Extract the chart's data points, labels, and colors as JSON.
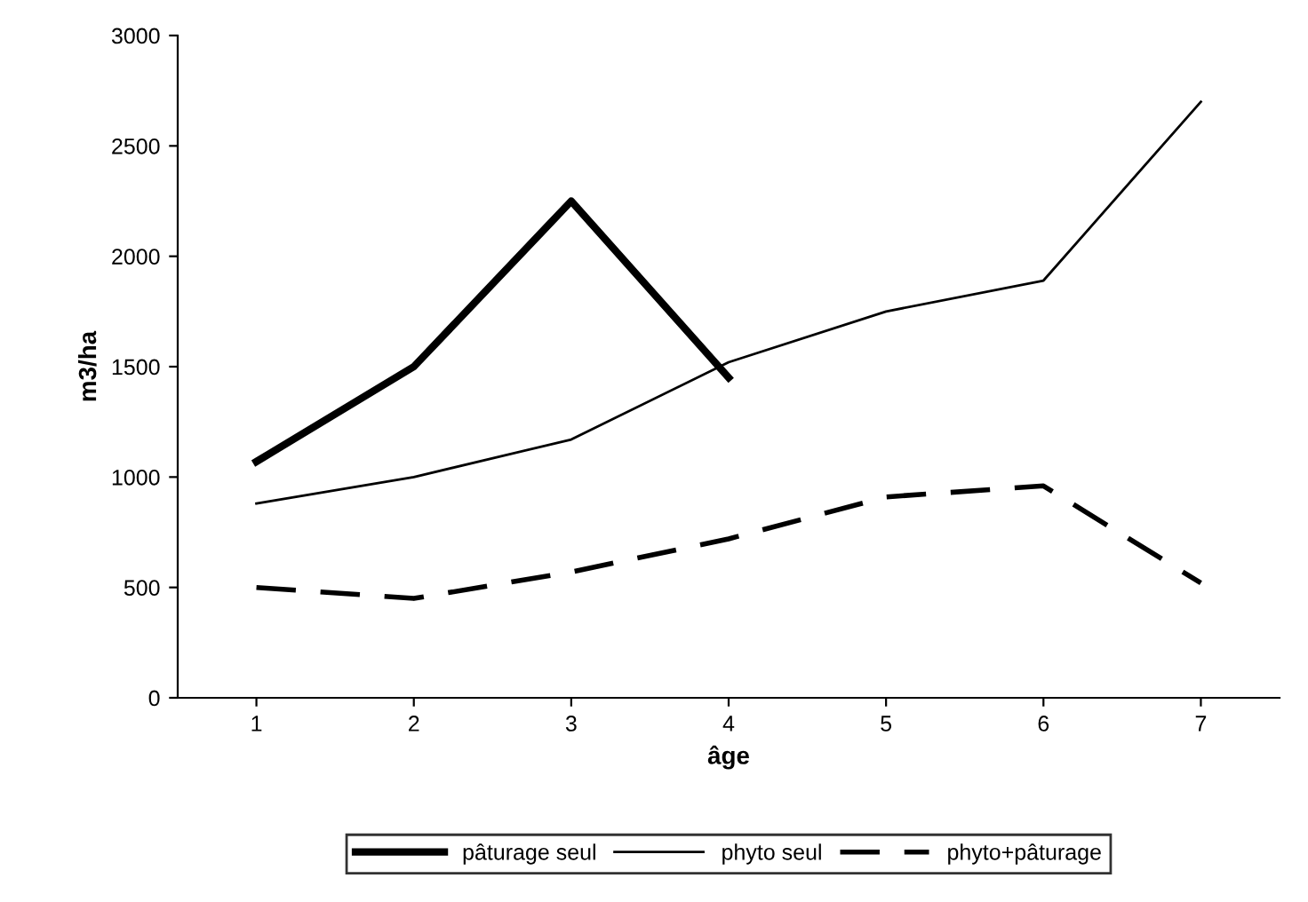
{
  "chart_data": {
    "type": "line",
    "xlabel": "âge",
    "ylabel": "m3/ha",
    "categories": [
      "1",
      "2",
      "3",
      "4",
      "5",
      "6",
      "7"
    ],
    "series": [
      {
        "name": "pâturage seul",
        "color": "#000000",
        "values": [
          1070,
          1500,
          2250,
          1450,
          null,
          null,
          null
        ],
        "line_style": "solid"
      },
      {
        "name": "phyto seul",
        "color": "#000000",
        "values": [
          880,
          1000,
          1170,
          1520,
          1750,
          1890,
          2700
        ],
        "line_style": "solid"
      },
      {
        "name": "phyto+pâturage",
        "color": "#000000",
        "values": [
          500,
          450,
          570,
          720,
          910,
          960,
          520
        ],
        "line_style": "dashed"
      }
    ],
    "ylim": [
      0,
      3000
    ],
    "yticks": [
      0,
      500,
      1000,
      1500,
      2000,
      2500,
      3000
    ],
    "grid": false,
    "legend": "bottom",
    "marker": "none"
  }
}
